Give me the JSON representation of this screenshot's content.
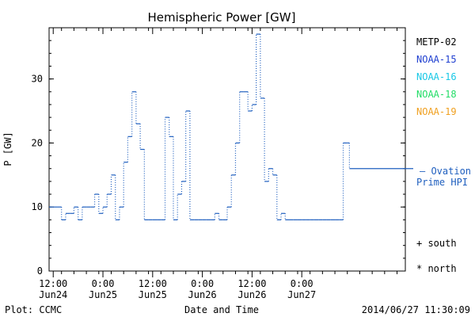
{
  "chart_data": {
    "type": "line",
    "title": "Hemispheric Power [GW]",
    "xlabel": "Date and Time",
    "ylabel": "P [GW]",
    "ylim": [
      0,
      38
    ],
    "xlim": [
      "2014-06-24T11:00",
      "2014-06-28T01:00"
    ],
    "yticks": [
      0,
      10,
      20,
      30
    ],
    "xticks": [
      {
        "t": "2014-06-24T12:00",
        "time": "12:00",
        "date": "Jun24"
      },
      {
        "t": "2014-06-25T00:00",
        "time": "0:00",
        "date": "Jun25"
      },
      {
        "t": "2014-06-25T12:00",
        "time": "12:00",
        "date": "Jun25"
      },
      {
        "t": "2014-06-26T00:00",
        "time": "0:00",
        "date": "Jun26"
      },
      {
        "t": "2014-06-26T12:00",
        "time": "12:00",
        "date": "Jun26"
      },
      {
        "t": "2014-06-27T00:00",
        "time": "0:00",
        "date": "Jun27"
      }
    ],
    "grid": false,
    "legend": {
      "position": "right",
      "satellites": [
        {
          "name": "METP-02",
          "color": "#000000"
        },
        {
          "name": "NOAA-15",
          "color": "#1f3fd0"
        },
        {
          "name": "NOAA-16",
          "color": "#18c8e6"
        },
        {
          "name": "NOAA-18",
          "color": "#22dd66"
        },
        {
          "name": "NOAA-19",
          "color": "#f0a020"
        }
      ],
      "ovation_label_1": "— Ovation",
      "ovation_label_2": "Prime HPI",
      "ovation_color": "#1f5fbf",
      "south_label": "+ south",
      "north_label": "* north"
    },
    "series": [
      {
        "name": "Ovation Prime HPI",
        "color": "#1f5fbf",
        "style": "step-dotted",
        "points": [
          [
            "2014-06-24T11:00",
            10
          ],
          [
            "2014-06-24T12:00",
            10
          ],
          [
            "2014-06-24T13:00",
            10
          ],
          [
            "2014-06-24T14:00",
            8
          ],
          [
            "2014-06-24T15:00",
            9
          ],
          [
            "2014-06-24T16:00",
            9
          ],
          [
            "2014-06-24T17:00",
            10
          ],
          [
            "2014-06-24T18:00",
            8
          ],
          [
            "2014-06-24T19:00",
            10
          ],
          [
            "2014-06-24T20:00",
            10
          ],
          [
            "2014-06-24T21:00",
            10
          ],
          [
            "2014-06-24T22:00",
            12
          ],
          [
            "2014-06-24T23:00",
            9
          ],
          [
            "2014-06-25T00:00",
            10
          ],
          [
            "2014-06-25T01:00",
            12
          ],
          [
            "2014-06-25T02:00",
            15
          ],
          [
            "2014-06-25T03:00",
            8
          ],
          [
            "2014-06-25T04:00",
            10
          ],
          [
            "2014-06-25T05:00",
            17
          ],
          [
            "2014-06-25T06:00",
            21
          ],
          [
            "2014-06-25T07:00",
            28
          ],
          [
            "2014-06-25T08:00",
            23
          ],
          [
            "2014-06-25T09:00",
            19
          ],
          [
            "2014-06-25T10:00",
            8
          ],
          [
            "2014-06-25T11:00",
            8
          ],
          [
            "2014-06-25T12:00",
            8
          ],
          [
            "2014-06-25T13:00",
            8
          ],
          [
            "2014-06-25T14:00",
            8
          ],
          [
            "2014-06-25T15:00",
            24
          ],
          [
            "2014-06-25T16:00",
            21
          ],
          [
            "2014-06-25T17:00",
            8
          ],
          [
            "2014-06-25T18:00",
            12
          ],
          [
            "2014-06-25T19:00",
            14
          ],
          [
            "2014-06-25T20:00",
            25
          ],
          [
            "2014-06-25T21:00",
            8
          ],
          [
            "2014-06-25T22:00",
            8
          ],
          [
            "2014-06-25T23:00",
            8
          ],
          [
            "2014-06-26T00:00",
            8
          ],
          [
            "2014-06-26T01:00",
            8
          ],
          [
            "2014-06-26T02:00",
            8
          ],
          [
            "2014-06-26T03:00",
            9
          ],
          [
            "2014-06-26T04:00",
            8
          ],
          [
            "2014-06-26T05:00",
            8
          ],
          [
            "2014-06-26T06:00",
            10
          ],
          [
            "2014-06-26T07:00",
            15
          ],
          [
            "2014-06-26T08:00",
            20
          ],
          [
            "2014-06-26T09:00",
            28
          ],
          [
            "2014-06-26T10:00",
            28
          ],
          [
            "2014-06-26T11:00",
            25
          ],
          [
            "2014-06-26T12:00",
            26
          ],
          [
            "2014-06-26T13:00",
            37
          ],
          [
            "2014-06-26T14:00",
            27
          ],
          [
            "2014-06-26T15:00",
            14
          ],
          [
            "2014-06-26T16:00",
            16
          ],
          [
            "2014-06-26T17:00",
            15
          ],
          [
            "2014-06-26T18:00",
            8
          ],
          [
            "2014-06-26T19:00",
            9
          ],
          [
            "2014-06-26T20:00",
            8
          ],
          [
            "2014-06-26T21:00",
            8
          ],
          [
            "2014-06-26T22:00",
            8
          ],
          [
            "2014-06-26T23:00",
            8
          ],
          [
            "2014-06-27T00:00",
            8
          ],
          [
            "2014-06-27T01:00",
            8
          ],
          [
            "2014-06-27T02:00",
            8
          ],
          [
            "2014-06-27T03:00",
            8
          ],
          [
            "2014-06-27T04:00",
            8
          ],
          [
            "2014-06-27T05:00",
            8
          ],
          [
            "2014-06-27T06:00",
            8
          ],
          [
            "2014-06-27T07:00",
            8
          ],
          [
            "2014-06-27T08:00",
            8
          ],
          [
            "2014-06-27T09:00",
            8
          ],
          [
            "2014-06-27T10:00",
            20
          ],
          [
            "2014-06-27T11:00",
            20
          ],
          [
            "2014-06-27T11:30",
            16
          ]
        ]
      }
    ]
  },
  "footer": {
    "plot_credit": "Plot: CCMC",
    "timestamp": "2014/06/27 11:30:09"
  }
}
